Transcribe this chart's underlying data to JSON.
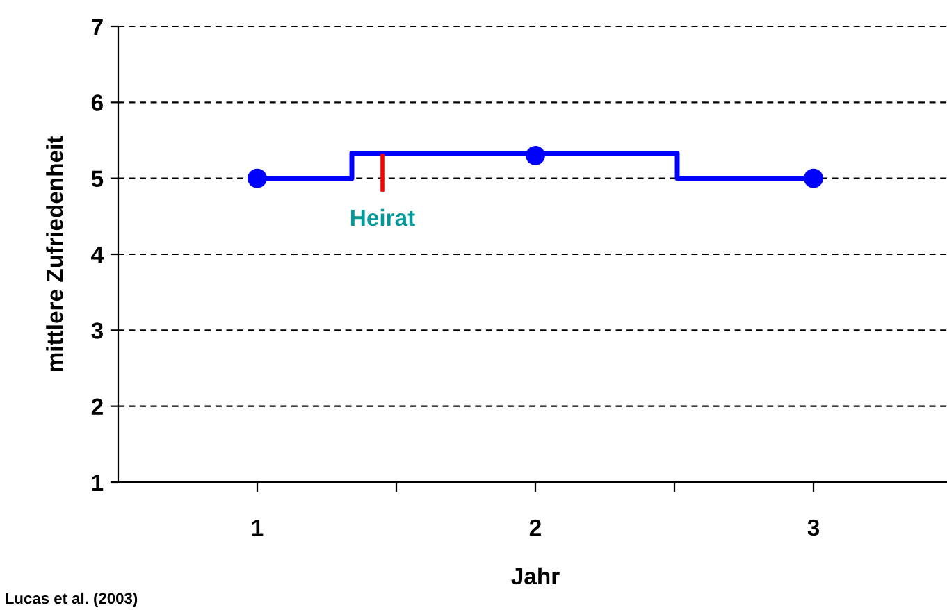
{
  "chart_data": {
    "type": "line",
    "xlabel": "Jahr",
    "ylabel": "mittlere Zufriedenheit",
    "xlim": [
      0.5,
      3.5
    ],
    "xticks": [
      1,
      {
        "value": 1.5,
        "label": null
      },
      2,
      {
        "value": 2.5,
        "label": null
      },
      3
    ],
    "ylim": [
      1,
      7
    ],
    "yticks": [
      1,
      2,
      3,
      4,
      5,
      6,
      7
    ],
    "grid": "y",
    "series": [
      {
        "type": "step",
        "color": "#0000ff",
        "x": [
          1,
          1.34,
          2.51,
          3
        ],
        "values": [
          5,
          5.33,
          5,
          5
        ]
      },
      {
        "type": "scatter",
        "color": "#0000ff",
        "marker": "circle",
        "x": [
          1,
          2,
          3
        ],
        "values": [
          5,
          5.3,
          5
        ]
      },
      {
        "color": "#ff0000",
        "x": [
          1.45,
          1.45
        ],
        "values": [
          4.85,
          5.3
        ]
      }
    ],
    "annotations": [
      {
        "text": "Heirat",
        "x": 1.45,
        "y": 4.85
      },
      "Lucas et al. (2003)"
    ]
  }
}
